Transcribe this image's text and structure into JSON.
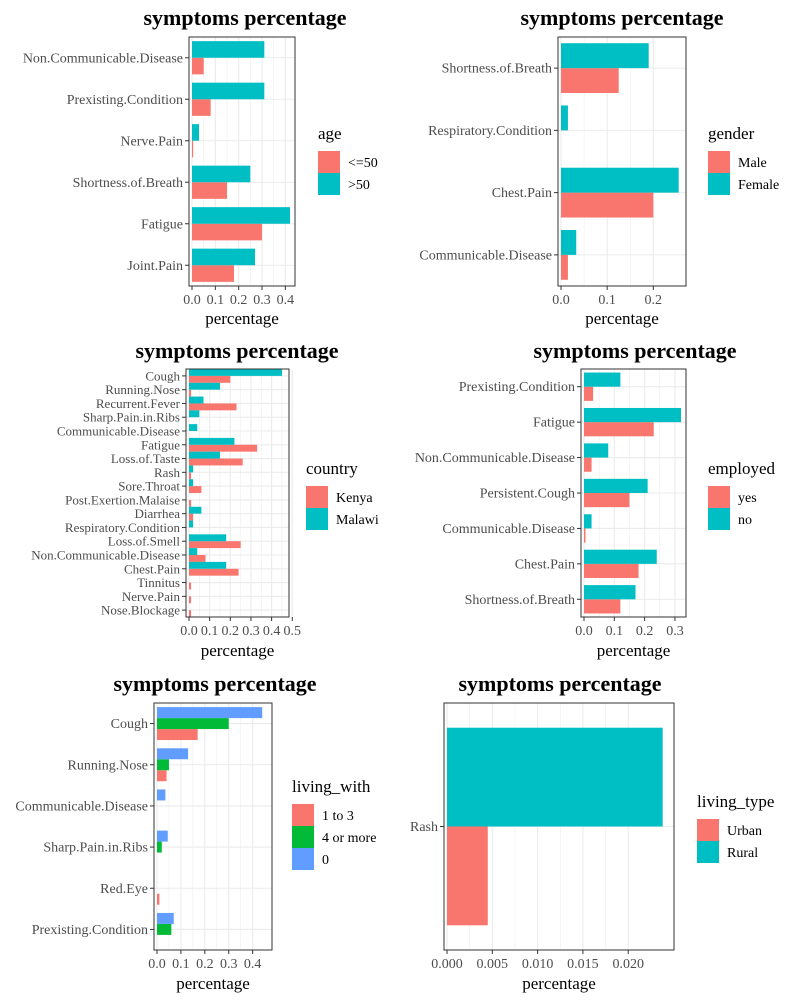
{
  "colors": {
    "red": "#F8766D",
    "teal": "#00BFC4",
    "green": "#00BA38",
    "blue": "#619CFF",
    "grid": "#EBEBEB",
    "text": "#4D4D4D"
  },
  "chart_data": [
    {
      "type": "bar",
      "orientation": "horizontal",
      "title": "symptoms percentage",
      "xlabel": "percentage",
      "xlim": [
        0,
        0.42
      ],
      "xticks": [
        0.0,
        0.1,
        0.2,
        0.3,
        0.4
      ],
      "xtick_labels": [
        "0.0",
        "0.1",
        "0.2",
        "0.3",
        "0.4"
      ],
      "grid": true,
      "legend_title": "age",
      "legend_position": "right",
      "categories": [
        "Non.Communicable.Disease",
        "Prexisting.Condition",
        "Nerve.Pain",
        "Shortness.of.Breath",
        "Fatigue",
        "Joint.Pain"
      ],
      "series": [
        {
          "name": "<=50",
          "color": "#F8766D",
          "values": [
            0.05,
            0.08,
            0.005,
            0.15,
            0.3,
            0.18
          ]
        },
        {
          "name": ">50",
          "color": "#00BFC4",
          "values": [
            0.31,
            0.31,
            0.03,
            0.25,
            0.42,
            0.27
          ]
        }
      ]
    },
    {
      "type": "bar",
      "orientation": "horizontal",
      "title": "symptoms percentage",
      "xlabel": "percentage",
      "xlim": [
        0,
        0.26
      ],
      "xticks": [
        0.0,
        0.1,
        0.2
      ],
      "xtick_labels": [
        "0.0",
        "0.1",
        "0.2"
      ],
      "grid": true,
      "legend_title": "gender",
      "legend_position": "right",
      "categories": [
        "Shortness.of.Breath",
        "Respiratory.Condition",
        "Chest.Pain",
        "Communicable.Disease"
      ],
      "series": [
        {
          "name": "Male",
          "color": "#F8766D",
          "values": [
            0.125,
            0.0,
            0.2,
            0.015
          ]
        },
        {
          "name": "Female",
          "color": "#00BFC4",
          "values": [
            0.19,
            0.015,
            0.255,
            0.033
          ]
        }
      ]
    },
    {
      "type": "bar",
      "orientation": "horizontal",
      "title": "symptoms percentage",
      "xlabel": "percentage",
      "xlim": [
        0,
        0.46
      ],
      "xticks": [
        0.0,
        0.1,
        0.2,
        0.3,
        0.4,
        0.5
      ],
      "xtick_labels": [
        "0.0",
        "0.1",
        "0.2",
        "0.3",
        "0.4",
        "0.5"
      ],
      "grid": true,
      "legend_title": "country",
      "legend_position": "right",
      "categories": [
        "Cough",
        "Running.Nose",
        "Recurrent.Fever",
        "Sharp.Pain.in.Ribs",
        "Communicable.Disease",
        "Fatigue",
        "Loss.of.Taste",
        "Rash",
        "Sore.Throat",
        "Post.Exertion.Malaise",
        "Diarrhea",
        "Respiratory.Condition",
        "Loss.of.Smell",
        "Non.Communicable.Disease",
        "Chest.Pain",
        "Tinnitus",
        "Nerve.Pain",
        "Nose.Blockage"
      ],
      "series": [
        {
          "name": "Kenya",
          "color": "#F8766D",
          "values": [
            0.2,
            0.01,
            0.23,
            0.0,
            0.0,
            0.33,
            0.26,
            0.01,
            0.06,
            0.01,
            0.02,
            0.0,
            0.25,
            0.08,
            0.24,
            0.01,
            0.01,
            0.01
          ]
        },
        {
          "name": "Malawi",
          "color": "#00BFC4",
          "values": [
            0.45,
            0.15,
            0.07,
            0.05,
            0.04,
            0.22,
            0.15,
            0.02,
            0.02,
            0.0,
            0.06,
            0.02,
            0.18,
            0.04,
            0.18,
            0.0,
            0.0,
            0.0
          ]
        }
      ]
    },
    {
      "type": "bar",
      "orientation": "horizontal",
      "title": "symptoms percentage",
      "xlabel": "percentage",
      "xlim": [
        0,
        0.32
      ],
      "xticks": [
        0.0,
        0.1,
        0.2,
        0.3
      ],
      "xtick_labels": [
        "0.0",
        "0.1",
        "0.2",
        "0.3"
      ],
      "grid": true,
      "legend_title": "employed",
      "legend_position": "right",
      "categories": [
        "Prexisting.Condition",
        "Fatigue",
        "Non.Communicable.Disease",
        "Persistent.Cough",
        "Communicable.Disease",
        "Chest.Pain",
        "Shortness.of.Breath"
      ],
      "series": [
        {
          "name": "yes",
          "color": "#F8766D",
          "values": [
            0.03,
            0.23,
            0.025,
            0.15,
            0.005,
            0.18,
            0.12
          ]
        },
        {
          "name": "no",
          "color": "#00BFC4",
          "values": [
            0.12,
            0.32,
            0.08,
            0.21,
            0.025,
            0.24,
            0.17
          ]
        }
      ]
    },
    {
      "type": "bar",
      "orientation": "horizontal",
      "title": "symptoms percentage",
      "xlabel": "percentage",
      "xlim": [
        0,
        0.46
      ],
      "xticks": [
        0.0,
        0.1,
        0.2,
        0.3,
        0.4
      ],
      "xtick_labels": [
        "0.0",
        "0.1",
        "0.2",
        "0.3",
        "0.4"
      ],
      "grid": true,
      "legend_title": "living_with",
      "legend_position": "right",
      "categories": [
        "Cough",
        "Running.Nose",
        "Communicable.Disease",
        "Sharp.Pain.in.Ribs",
        "Red.Eye",
        "Prexisting.Condition"
      ],
      "series": [
        {
          "name": "1 to 3",
          "color": "#F8766D",
          "values": [
            0.17,
            0.04,
            0.0,
            0.0,
            0.01,
            0.0
          ]
        },
        {
          "name": "4 or more",
          "color": "#00BA38",
          "values": [
            0.3,
            0.05,
            0.0,
            0.02,
            0.0,
            0.06
          ]
        },
        {
          "name": "0",
          "color": "#619CFF",
          "values": [
            0.44,
            0.13,
            0.035,
            0.045,
            0.0,
            0.07
          ]
        }
      ]
    },
    {
      "type": "bar",
      "orientation": "horizontal",
      "title": "symptoms percentage",
      "xlabel": "percentage",
      "xlim": [
        0,
        0.0245
      ],
      "xticks": [
        0.0,
        0.005,
        0.01,
        0.015,
        0.02
      ],
      "xtick_labels": [
        "0.000",
        "0.005",
        "0.010",
        "0.015",
        "0.020"
      ],
      "grid": true,
      "legend_title": "living_type",
      "legend_position": "right",
      "categories": [
        "Rash"
      ],
      "series": [
        {
          "name": "Urban",
          "color": "#F8766D",
          "values": [
            0.0045
          ]
        },
        {
          "name": "Rural",
          "color": "#00BFC4",
          "values": [
            0.0238
          ]
        }
      ]
    }
  ]
}
